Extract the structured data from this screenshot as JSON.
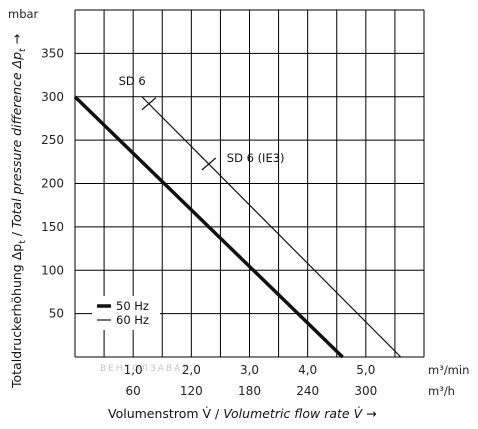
{
  "chart_data": {
    "type": "line",
    "ylabel": "Totaldruckerhöhung Δpt / Total pressure difference Δpt →",
    "ylabel_parts": {
      "german": "Totaldruckerhöhung Δp",
      "german_sub": "t",
      "sep": " / ",
      "english": "Total pressure difference Δp",
      "english_sub": "t",
      "arrow": " →"
    },
    "xlabel": "Volumenstrom V̇ / Volumetric flow rate V̇ →",
    "xlabel_parts": {
      "german": "Volumenstrom V̇ / ",
      "english": "Volumetric flow rate V̇",
      "arrow": " →"
    },
    "y_unit": "mbar",
    "x_unit_primary": "m³/min",
    "x_unit_secondary": "m³/h",
    "xlim": [
      0,
      6.0
    ],
    "ylim": [
      0,
      400
    ],
    "x_ticks": [
      {
        "value": 1.0,
        "label": "1,0"
      },
      {
        "value": 2.0,
        "label": "2,0"
      },
      {
        "value": 3.0,
        "label": "3,0"
      },
      {
        "value": 4.0,
        "label": "4,0"
      },
      {
        "value": 5.0,
        "label": "5,0"
      }
    ],
    "x_ticks_secondary": [
      {
        "value": 1.0,
        "label": "60"
      },
      {
        "value": 2.0,
        "label": "120"
      },
      {
        "value": 3.0,
        "label": "180"
      },
      {
        "value": 4.0,
        "label": "240"
      },
      {
        "value": 5.0,
        "label": "300"
      }
    ],
    "y_ticks": [
      {
        "value": 50,
        "label": "50"
      },
      {
        "value": 100,
        "label": "100"
      },
      {
        "value": 150,
        "label": "150"
      },
      {
        "value": 200,
        "label": "200"
      },
      {
        "value": 250,
        "label": "250"
      },
      {
        "value": 300,
        "label": "300"
      },
      {
        "value": 350,
        "label": "350"
      }
    ],
    "grid": true,
    "series": [
      {
        "name": "50 Hz",
        "line_weight": "thick",
        "x": [
          0.0,
          4.6
        ],
        "y": [
          300,
          0
        ]
      },
      {
        "name": "60 Hz",
        "line_weight": "thin",
        "x": [
          1.15,
          5.6
        ],
        "y": [
          300,
          0
        ]
      }
    ],
    "annotations": [
      {
        "text": "SD 6",
        "x": 1.3,
        "y": 300
      },
      {
        "text": "SD 6 (IE3)",
        "x": 2.3,
        "y": 240
      }
    ],
    "legend_placement": "bottom-left"
  },
  "watermark": "ВЕНТОЛЗАВАЛ"
}
